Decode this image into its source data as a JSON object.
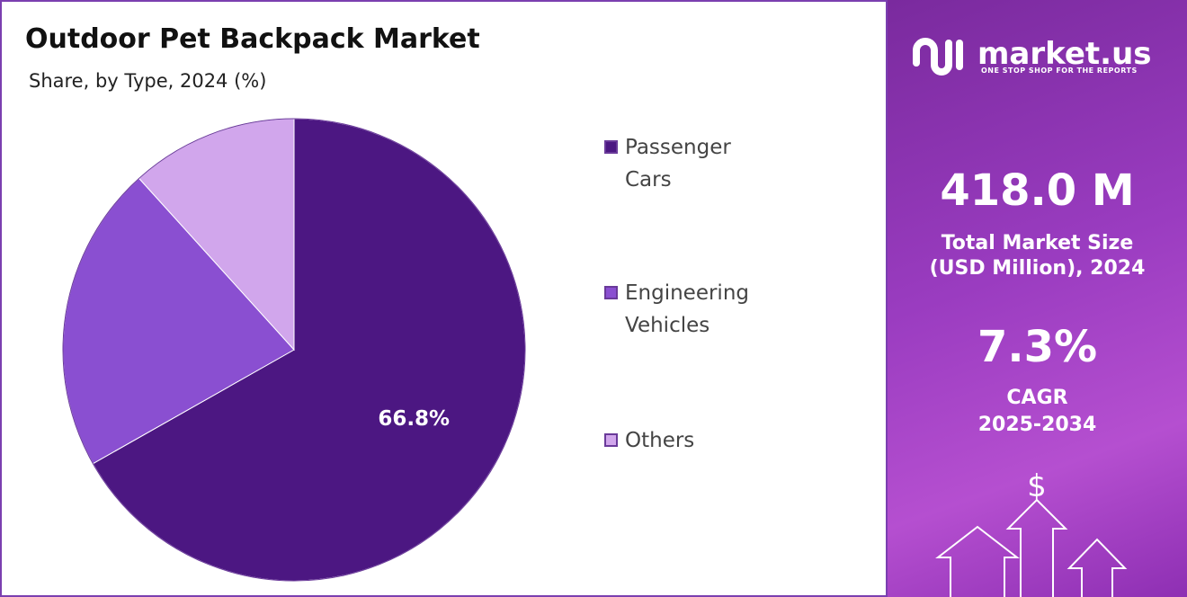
{
  "chart_data": {
    "type": "pie",
    "title": "Outdoor Pet Backpack Market",
    "subtitle": "Share, by Type, 2024 (%)",
    "categories": [
      "Passenger Cars",
      "Engineering Vehicles",
      "Others"
    ],
    "values": [
      66.8,
      21.5,
      11.7
    ],
    "value_labels": [
      "66.8%",
      null,
      null
    ],
    "colors": [
      "#4c1782",
      "#8a4fd1",
      "#d1a6ec"
    ]
  },
  "panel": {
    "brand": "market.us",
    "tagline": "ONE STOP SHOP FOR THE REPORTS",
    "market_size": "418.0 M",
    "market_size_label_1": "Total Market Size",
    "market_size_label_2": "(USD Million), 2024",
    "cagr": "7.3%",
    "cagr_label": "CAGR",
    "cagr_period": "2025-2034",
    "icon_symbol": "$"
  }
}
